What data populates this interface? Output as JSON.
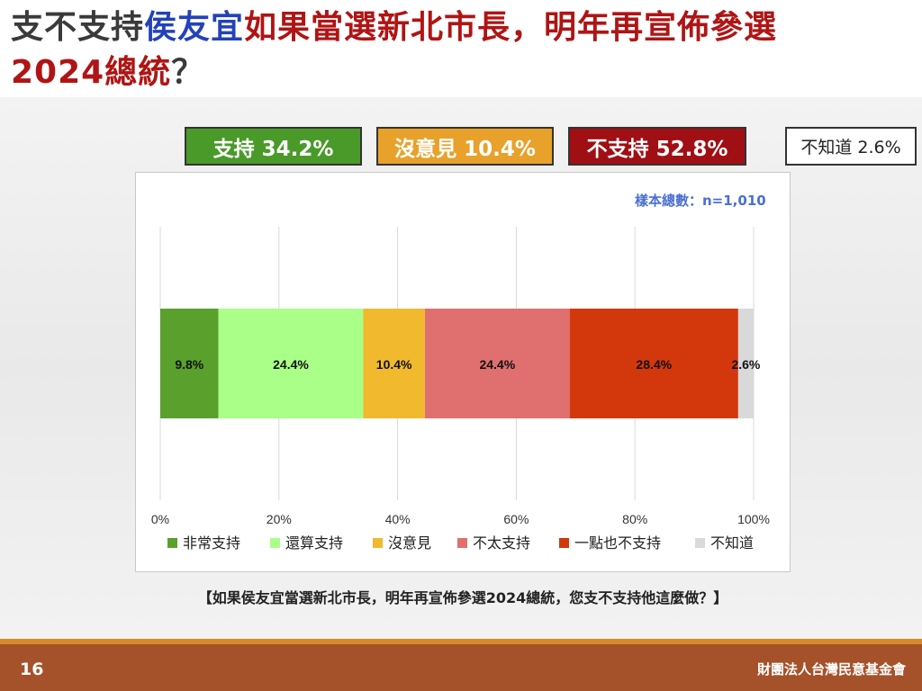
{
  "title": {
    "part1": "支不支持",
    "part2": "侯友宜",
    "part3": "如果當選新北市長，明年再宣佈參選",
    "part4": "2024總統",
    "part5": "？"
  },
  "summary": {
    "support": "支持 34.2%",
    "no_opinion": "沒意見 10.4%",
    "oppose": "不支持 52.8%",
    "unknown": "不知道 2.6%"
  },
  "sample_note": "樣本總數：n=1,010",
  "question": "【如果侯友宜當選新北市長，明年再宣佈參選2024總統，您支不支持他這麼做？】",
  "footer": {
    "page_number": "16",
    "organization": "財團法人台灣民意基金會"
  },
  "colors": {
    "very_support": "#5aa02c",
    "somewhat_support": "#aaff88",
    "no_opinion": "#f0b92e",
    "not_really_support": "#e07070",
    "not_at_all_support": "#d2380c",
    "unknown": "#d9d9d9"
  },
  "chart_data": {
    "type": "bar",
    "orientation": "horizontal",
    "stacked": true,
    "xlim": [
      0,
      100
    ],
    "x_ticks": [
      "0%",
      "20%",
      "40%",
      "60%",
      "80%",
      "100%"
    ],
    "grid": true,
    "legend_position": "bottom",
    "series": [
      {
        "name": "非常支持",
        "value": 9.8,
        "label": "9.8%",
        "color": "#5aa02c"
      },
      {
        "name": "還算支持",
        "value": 24.4,
        "label": "24.4%",
        "color": "#aaff88"
      },
      {
        "name": "沒意見",
        "value": 10.4,
        "label": "10.4%",
        "color": "#f0b92e"
      },
      {
        "name": "不太支持",
        "value": 24.4,
        "label": "24.4%",
        "color": "#e07070"
      },
      {
        "name": "一點也不支持",
        "value": 28.4,
        "label": "28.4%",
        "color": "#d2380c"
      },
      {
        "name": "不知道",
        "value": 2.6,
        "label": "2.6%",
        "color": "#d9d9d9"
      }
    ]
  }
}
